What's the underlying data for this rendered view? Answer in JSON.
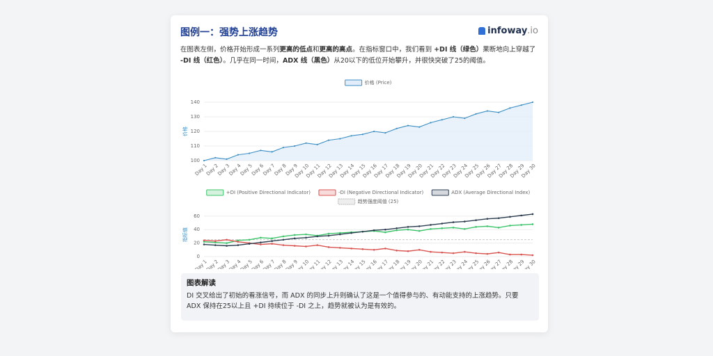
{
  "header": {
    "title": "图例一：强势上涨趋势",
    "logo": {
      "name": "infoway",
      "suffix": ".io"
    }
  },
  "intro": {
    "segments": [
      {
        "text": "在图表左侧，价格开始形成一系列",
        "bold": false
      },
      {
        "text": "更高的低点",
        "bold": true
      },
      {
        "text": "和",
        "bold": false
      },
      {
        "text": "更高的高点",
        "bold": true
      },
      {
        "text": "。在指标窗口中，我们看到 ",
        "bold": false
      },
      {
        "text": "+DI 线（绿色）",
        "bold": true
      },
      {
        "text": "果断地向上穿越了 ",
        "bold": false
      },
      {
        "text": "-DI 线（红色）",
        "bold": true
      },
      {
        "text": "。几乎在同一时间，",
        "bold": false
      },
      {
        "text": "ADX 线（黑色）",
        "bold": true
      },
      {
        "text": "从20以下的低位开始攀升，并很快突破了25的阈值。",
        "bold": false
      }
    ]
  },
  "chart_data": [
    {
      "type": "line",
      "y_label": "价格",
      "area": true,
      "categories": [
        "Day 1",
        "Day 2",
        "Day 3",
        "Day 4",
        "Day 5",
        "Day 6",
        "Day 7",
        "Day 8",
        "Day 9",
        "Day 10",
        "Day 11",
        "Day 12",
        "Day 13",
        "Day 14",
        "Day 15",
        "Day 16",
        "Day 17",
        "Day 18",
        "Day 19",
        "Day 20",
        "Day 21",
        "Day 22",
        "Day 23",
        "Day 24",
        "Day 25",
        "Day 26",
        "Day 27",
        "Day 28",
        "Day 29",
        "Day 30"
      ],
      "series": [
        {
          "name": "价格 (Price)",
          "color": "#3b8fc4",
          "fill": "#e3edf9",
          "values": [
            100,
            102,
            101,
            104,
            105,
            107,
            106,
            109,
            110,
            112,
            111,
            114,
            115,
            117,
            118,
            120,
            119,
            122,
            124,
            123,
            126,
            128,
            130,
            129,
            132,
            134,
            133,
            136,
            138,
            140
          ]
        }
      ],
      "ylim": [
        100,
        140
      ],
      "yticks": [
        100,
        110,
        120,
        130,
        140
      ],
      "grid": true
    },
    {
      "type": "line",
      "y_label": "指标值",
      "area": false,
      "categories": [
        "Day 1",
        "Day 2",
        "Day 3",
        "Day 4",
        "Day 5",
        "Day 6",
        "Day 7",
        "Day 8",
        "Day 9",
        "Day 10",
        "Day 11",
        "Day 12",
        "Day 13",
        "Day 14",
        "Day 15",
        "Day 16",
        "Day 17",
        "Day 18",
        "Day 19",
        "Day 20",
        "Day 21",
        "Day 22",
        "Day 23",
        "Day 24",
        "Day 25",
        "Day 26",
        "Day 27",
        "Day 28",
        "Day 29",
        "Day 30"
      ],
      "series": [
        {
          "name": "+DI (Positive Directional Indicator)",
          "color": "#3cc46a",
          "fill": "#d4f2de",
          "values": [
            22,
            21,
            20,
            24,
            25,
            28,
            27,
            30,
            32,
            33,
            31,
            34,
            35,
            36,
            37,
            38,
            36,
            39,
            40,
            38,
            41,
            42,
            43,
            41,
            44,
            45,
            43,
            46,
            47,
            48
          ]
        },
        {
          "name": "-DI (Negative Directional Indicator)",
          "color": "#d9534f",
          "fill": "#f8dcdb",
          "values": [
            24,
            23,
            25,
            22,
            20,
            18,
            19,
            17,
            16,
            15,
            17,
            14,
            13,
            12,
            11,
            10,
            12,
            9,
            8,
            10,
            7,
            6,
            5,
            7,
            5,
            4,
            6,
            3,
            3,
            2
          ]
        },
        {
          "name": "ADX (Average Directional Index)",
          "color": "#2c3e50",
          "fill": "#d5d9de",
          "values": [
            18,
            17,
            16,
            17,
            19,
            21,
            23,
            25,
            27,
            28,
            30,
            31,
            33,
            35,
            37,
            39,
            40,
            42,
            44,
            45,
            47,
            49,
            51,
            52,
            54,
            56,
            57,
            59,
            61,
            63
          ]
        }
      ],
      "reference_lines": [
        {
          "name": "趋势强度阈值 (25)",
          "value": 25,
          "color": "#b5b5b5"
        }
      ],
      "ylim": [
        0,
        65
      ],
      "yticks": [
        0,
        20,
        40,
        60
      ],
      "grid": true
    }
  ],
  "explanation": {
    "title": "图表解读",
    "text": "DI 交叉给出了初始的看涨信号，而 ADX 的同步上升则确认了这是一个值得参与的、有动能支持的上涨趋势。只要 ADX 保持在25以上且 +DI 持续位于 -DI 之上，趋势就被认为是有效的。"
  }
}
